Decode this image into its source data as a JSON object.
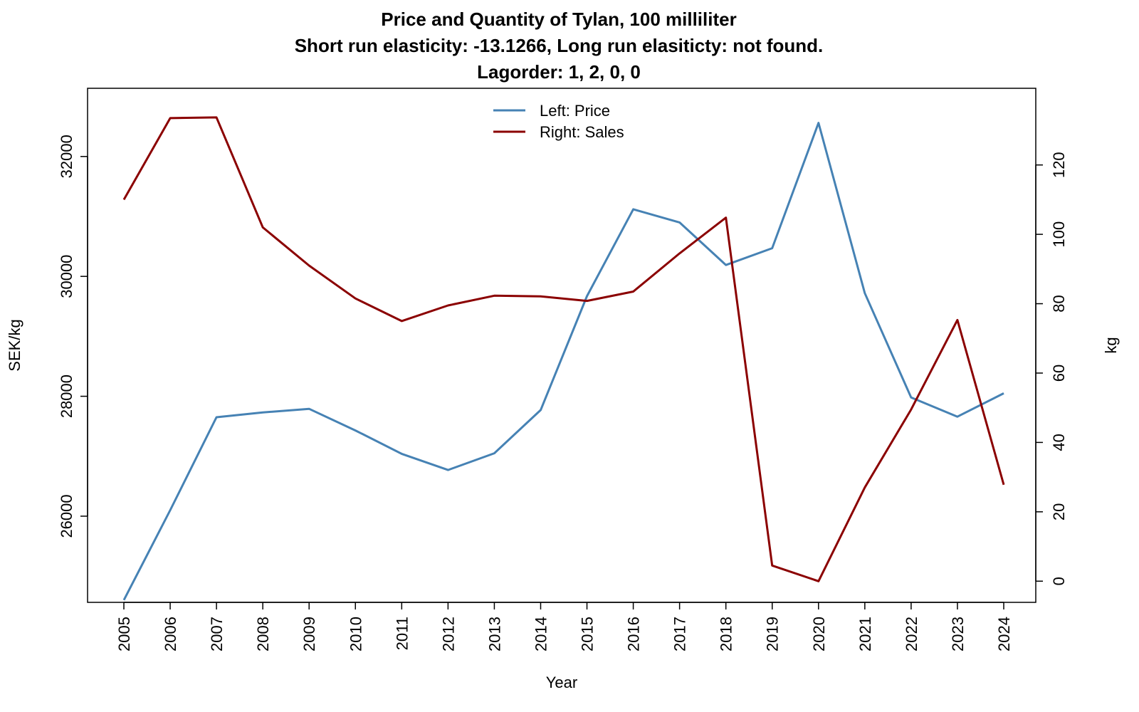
{
  "chart_data": {
    "type": "line",
    "title": [
      "Price and Quantity of Tylan, 100 milliliter",
      "Short run elasticity: -13.1266,   Long run elasiticty: not found.",
      "Lagorder: 1, 2, 0, 0"
    ],
    "xlabel": "Year",
    "ylabel_left": "SEK/kg",
    "ylabel_right": "kg",
    "x": [
      "2005",
      "2006",
      "2007",
      "2008",
      "2009",
      "2010",
      "2011",
      "2012",
      "2013",
      "2014",
      "2015",
      "2016",
      "2017",
      "2018",
      "2019",
      "2020",
      "2021",
      "2022",
      "2023",
      "2024"
    ],
    "ylim_left": [
      24800,
      32900
    ],
    "yticks_left": [
      26000,
      28000,
      30000,
      32000
    ],
    "ylim_right": [
      -2,
      138
    ],
    "yticks_right": [
      0,
      20,
      40,
      60,
      80,
      100,
      120
    ],
    "legend_position": "top-center",
    "series": [
      {
        "name": "Left: Price",
        "axis": "left",
        "color": "#4682B4",
        "values": [
          24600,
          26100,
          27650,
          27730,
          27790,
          27430,
          27040,
          26770,
          27050,
          27770,
          29670,
          31120,
          30900,
          30190,
          30470,
          32560,
          29720,
          27980,
          27660,
          28050
        ]
      },
      {
        "name": "Right: Sales",
        "axis": "right",
        "color": "#8B0000",
        "values": [
          110,
          133.5,
          133.7,
          102,
          91,
          81.5,
          75,
          79.5,
          82.3,
          82.1,
          80.8,
          83.5,
          94.5,
          104.8,
          4.5,
          0,
          27,
          49.5,
          75.3,
          27.8
        ]
      }
    ]
  }
}
